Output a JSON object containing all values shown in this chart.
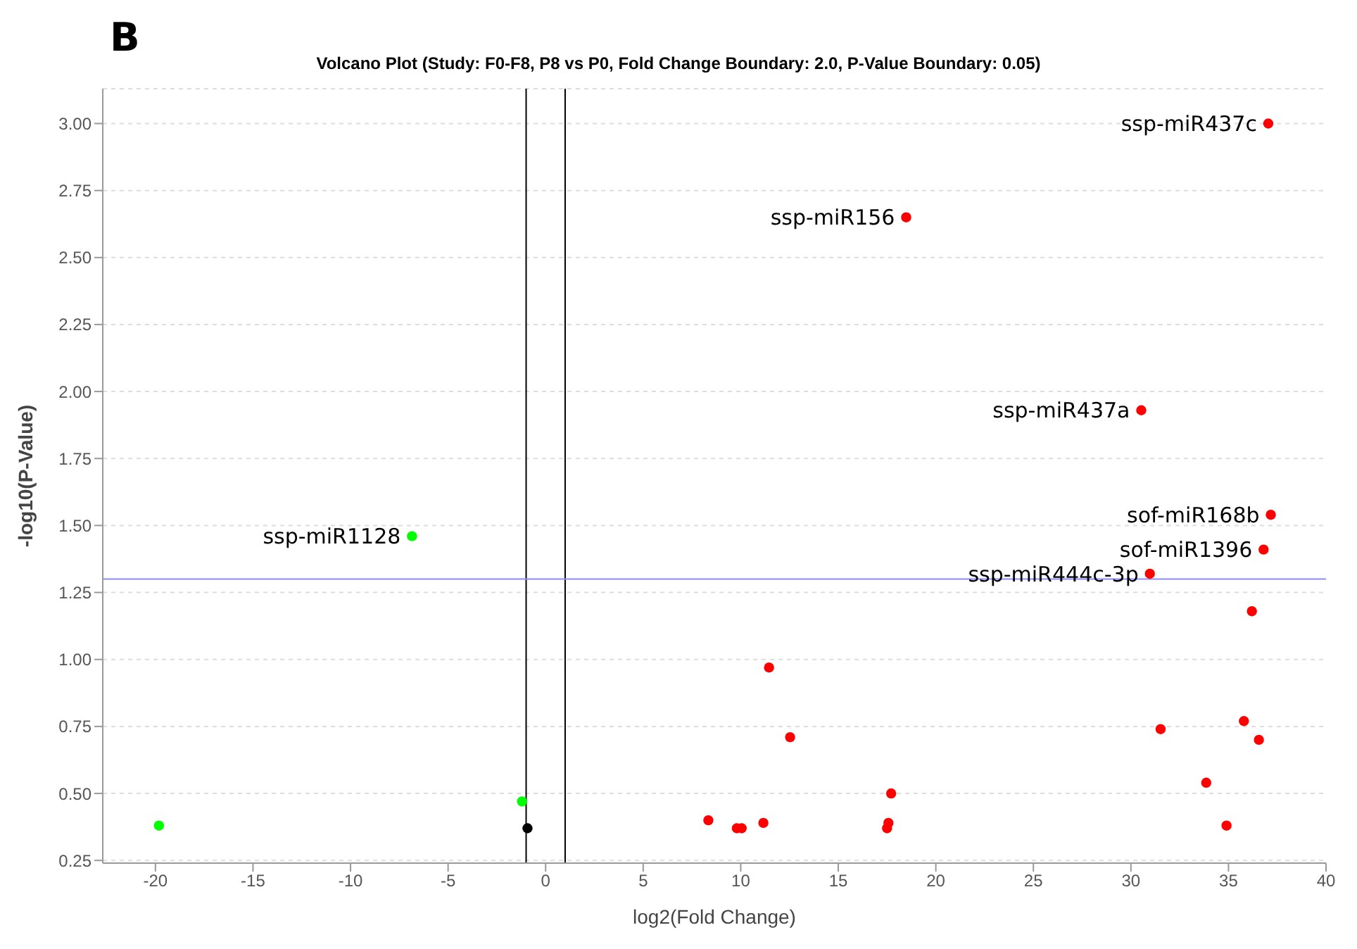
{
  "chart_data": {
    "type": "scatter",
    "title": "Volcano Plot (Study: F0-F8, P8 vs P0, Fold Change Boundary: 2.0, P-Value Boundary: 0.05)",
    "xlabel": "log2(Fold Change)",
    "ylabel": "-log10(P-Value)",
    "series": [
      {
        "color": "#ff0000",
        "x": [
          37.04,
          18.48,
          30.53,
          37.17,
          36.8,
          30.97,
          36.2,
          11.45,
          12.53,
          8.34,
          9.8,
          10.05,
          11.16,
          17.71,
          17.57,
          17.5,
          31.52,
          35.79,
          36.56,
          33.86,
          34.9
        ],
        "values": [
          3.0,
          2.65,
          1.93,
          1.54,
          1.41,
          1.32,
          1.18,
          0.97,
          0.71,
          0.4,
          0.37,
          0.37,
          0.39,
          0.5,
          0.39,
          0.37,
          0.74,
          0.77,
          0.7,
          0.54,
          0.38
        ]
      },
      {
        "color": "#00ff00",
        "x": [
          -19.82,
          -6.85,
          -1.21
        ],
        "values": [
          0.38,
          1.46,
          0.47
        ]
      },
      {
        "color": "#000000",
        "x": [
          -0.93
        ],
        "values": [
          0.37
        ]
      }
    ],
    "xlim": [
      -22.7,
      40
    ],
    "xticks": [
      -20,
      -15,
      -10,
      -5,
      0,
      5,
      10,
      15,
      20,
      25,
      30,
      35,
      40
    ],
    "ylim": [
      0.24,
      3.13
    ],
    "yticks": [
      {
        "value": 0.25,
        "label": "0.25"
      },
      {
        "value": 0.5,
        "label": "0.50"
      },
      {
        "value": 0.75,
        "label": "0.75"
      },
      {
        "value": 1,
        "label": "1.00"
      },
      {
        "value": 1.25,
        "label": "1.25"
      },
      {
        "value": 1.5,
        "label": "1.50"
      },
      {
        "value": 1.75,
        "label": "1.75"
      },
      {
        "value": 2,
        "label": "2.00"
      },
      {
        "value": 2.25,
        "label": "2.25"
      },
      {
        "value": 2.5,
        "label": "2.50"
      },
      {
        "value": 2.75,
        "label": "2.75"
      },
      {
        "value": 3,
        "label": "3.00"
      }
    ],
    "grid": "y",
    "marker": "circle",
    "legend": false,
    "ref_lines": [
      {
        "axis": "x",
        "value": -1,
        "color": "#000000"
      },
      {
        "axis": "x",
        "value": 1,
        "color": "#000000"
      },
      {
        "axis": "y",
        "value": 1.3,
        "color": "#8c8cff"
      }
    ],
    "annotations": [
      "B",
      {
        "text": "ssp-miR437c",
        "x": 37.04,
        "y": 3.0
      },
      {
        "text": "ssp-miR156",
        "x": 18.48,
        "y": 2.65
      },
      {
        "text": "ssp-miR437a",
        "x": 30.53,
        "y": 1.93
      },
      {
        "text": "sof-miR168b",
        "x": 37.17,
        "y": 1.54
      },
      {
        "text": "sof-miR1396",
        "x": 36.8,
        "y": 1.41
      },
      {
        "text": "ssp-miR444c-3p",
        "x": 30.97,
        "y": 1.32
      },
      {
        "text": "ssp-miR1128",
        "x": -6.85,
        "y": 1.46
      }
    ]
  }
}
